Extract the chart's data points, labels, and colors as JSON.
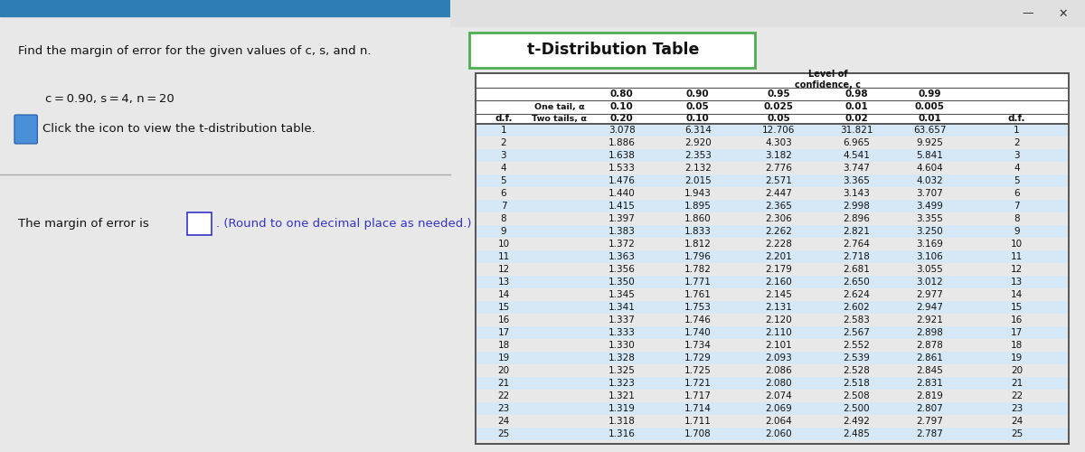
{
  "left_panel": {
    "bg_color": "#ffffff",
    "header_color": "#2e7db5",
    "title_line1": "Find the margin of error for the given values of c, s, and n.",
    "title_line2": "c = 0.90, s = 4, n = 20",
    "click_text": "Click the icon to view the t-distribution table.",
    "answer_text1": "The margin of error is",
    "answer_text2": ". (Round to one decimal place as needed.)",
    "answer_color": "#3333cc"
  },
  "right_panel": {
    "bg_color": "#f0f0f0",
    "title": "t-Distribution Table",
    "title_box_color": "#ffffff",
    "title_border_color": "#4caf50",
    "header_labels": [
      "Level of\nconfidence, c",
      "0.80",
      "0.90",
      "0.95",
      "0.98",
      "0.99"
    ],
    "one_tail_label": "One tail, α",
    "two_tail_label": "Two tails, α",
    "df_label": "d.f.",
    "one_tail_values": [
      "0.10",
      "0.05",
      "0.025",
      "0.01",
      "0.005"
    ],
    "two_tail_values": [
      "0.20",
      "0.10",
      "0.05",
      "0.02",
      "0.01"
    ],
    "df_values": [
      1,
      2,
      3,
      4,
      5,
      6,
      7,
      8,
      9,
      10,
      11,
      12,
      13,
      14,
      15,
      16,
      17,
      18,
      19,
      20,
      21,
      22,
      23,
      24,
      25
    ],
    "table_data": [
      [
        3.078,
        6.314,
        12.706,
        31.821,
        63.657
      ],
      [
        1.886,
        2.92,
        4.303,
        6.965,
        9.925
      ],
      [
        1.638,
        2.353,
        3.182,
        4.541,
        5.841
      ],
      [
        1.533,
        2.132,
        2.776,
        3.747,
        4.604
      ],
      [
        1.476,
        2.015,
        2.571,
        3.365,
        4.032
      ],
      [
        1.44,
        1.943,
        2.447,
        3.143,
        3.707
      ],
      [
        1.415,
        1.895,
        2.365,
        2.998,
        3.499
      ],
      [
        1.397,
        1.86,
        2.306,
        2.896,
        3.355
      ],
      [
        1.383,
        1.833,
        2.262,
        2.821,
        3.25
      ],
      [
        1.372,
        1.812,
        2.228,
        2.764,
        3.169
      ],
      [
        1.363,
        1.796,
        2.201,
        2.718,
        3.106
      ],
      [
        1.356,
        1.782,
        2.179,
        2.681,
        3.055
      ],
      [
        1.35,
        1.771,
        2.16,
        2.65,
        3.012
      ],
      [
        1.345,
        1.761,
        2.145,
        2.624,
        2.977
      ],
      [
        1.341,
        1.753,
        2.131,
        2.602,
        2.947
      ],
      [
        1.337,
        1.746,
        2.12,
        2.583,
        2.921
      ],
      [
        1.333,
        1.74,
        2.11,
        2.567,
        2.898
      ],
      [
        1.33,
        1.734,
        2.101,
        2.552,
        2.878
      ],
      [
        1.328,
        1.729,
        2.093,
        2.539,
        2.861
      ],
      [
        1.325,
        1.725,
        2.086,
        2.528,
        2.845
      ],
      [
        1.323,
        1.721,
        2.08,
        2.518,
        2.831
      ],
      [
        1.321,
        1.717,
        2.074,
        2.508,
        2.819
      ],
      [
        1.319,
        1.714,
        2.069,
        2.5,
        2.807
      ],
      [
        1.318,
        1.711,
        2.064,
        2.492,
        2.797
      ],
      [
        1.316,
        1.708,
        2.06,
        2.485,
        2.787
      ]
    ],
    "stripe_color": "#d6e8f5",
    "line_color": "#555555",
    "window_bar_color": "#e0e0e0"
  }
}
